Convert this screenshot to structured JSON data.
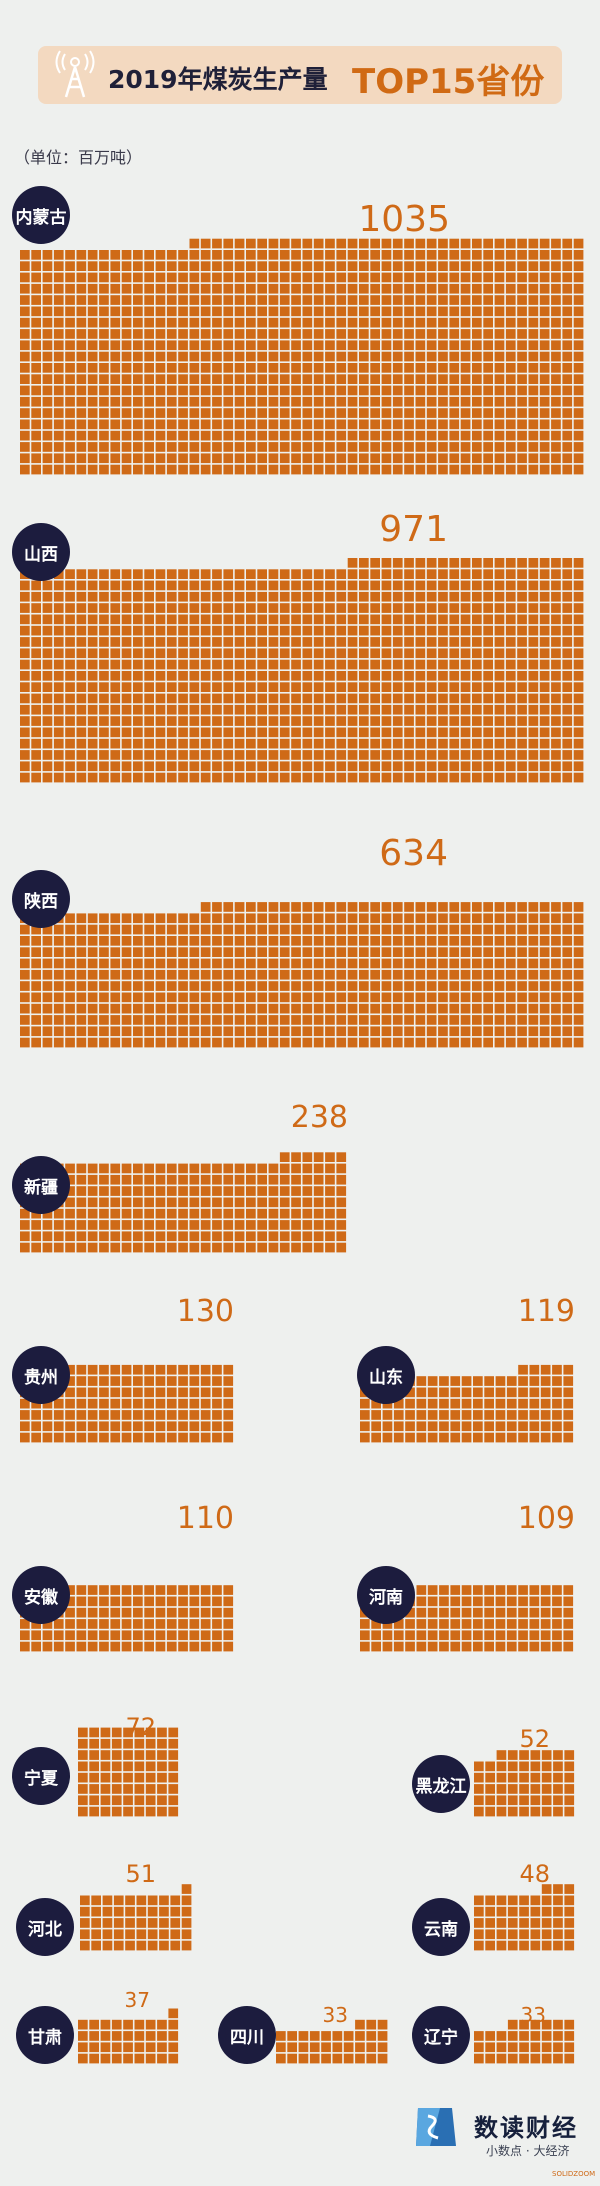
{
  "title": {
    "main": "2019年煤炭生产量",
    "accent": "TOP15省份"
  },
  "unit": "（单位：百万吨）",
  "colors": {
    "accent": "#cf6a17",
    "badge": "#1c1c3e",
    "cell": "#cf6a17",
    "background": "#eef0ee",
    "banner": "#f3d9c0"
  },
  "icons": {
    "title": "radio-tower-icon",
    "brand": "brand-logo-icon"
  },
  "chart_data": {
    "type": "bar",
    "categories": [
      "内蒙古",
      "山西",
      "陕西",
      "新疆",
      "贵州",
      "山东",
      "安徽",
      "河南",
      "宁夏",
      "黑龙江",
      "河北",
      "云南",
      "甘肃",
      "四川",
      "辽宁"
    ],
    "values": [
      1035,
      971,
      634,
      238,
      130,
      119,
      110,
      109,
      72,
      52,
      51,
      48,
      37,
      33,
      33
    ],
    "value_labels": [
      "1035",
      "971",
      "634",
      "238",
      "130",
      "119",
      "110",
      "109",
      "72",
      "52",
      "51",
      "48",
      "37",
      "33",
      "33"
    ],
    "encoding": "unit squares, one square ≈ one million tonnes"
  },
  "brand": {
    "name": "数读财经",
    "slogan": "小数点 · 大经济",
    "sub": "SOLIDZOOM"
  }
}
